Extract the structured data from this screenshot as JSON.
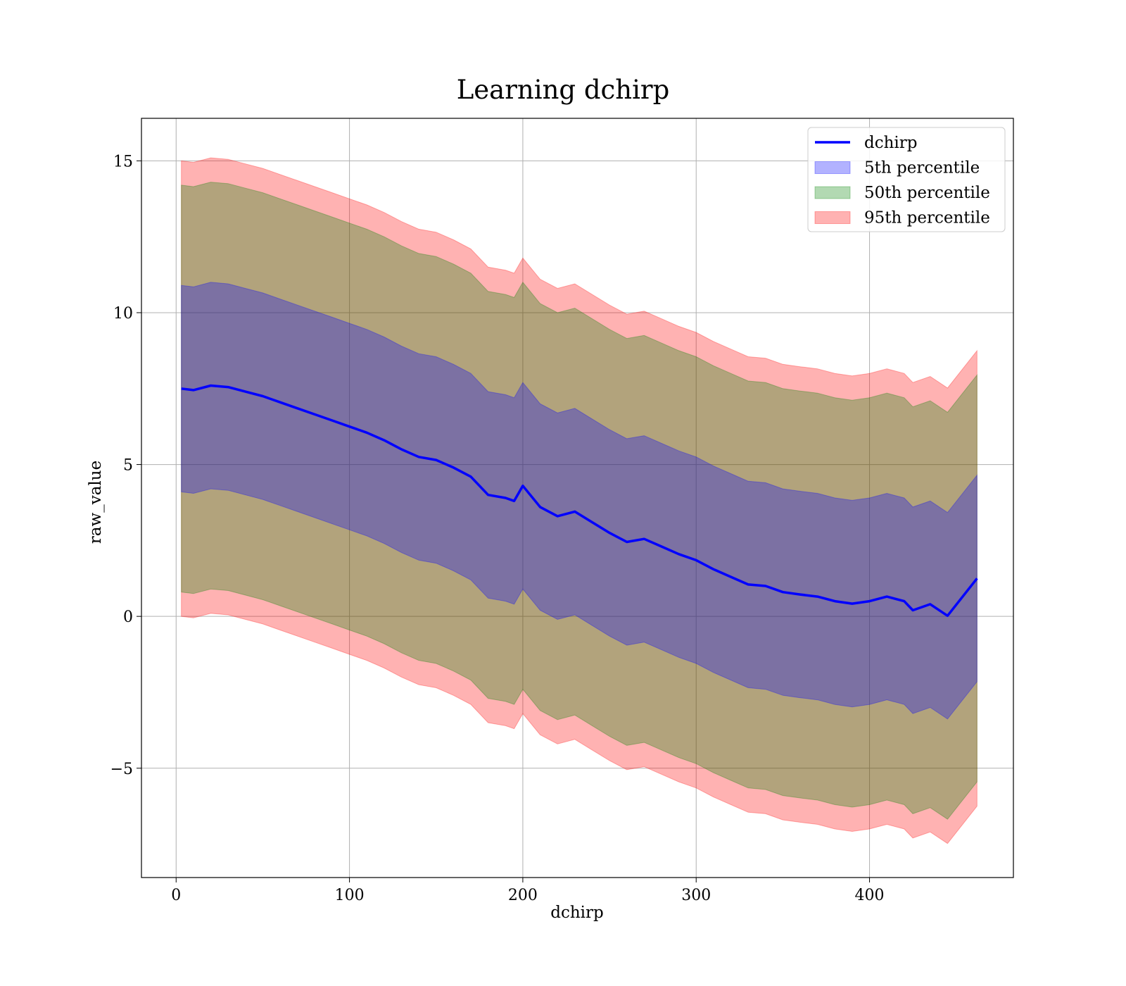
{
  "chart_data": {
    "type": "area",
    "title": "Learning dchirp",
    "xlabel": "dchirp",
    "ylabel": "raw_value",
    "xlim": [
      -20,
      483
    ],
    "ylim": [
      -8.6,
      16.4
    ],
    "x_ticks": [
      0,
      100,
      200,
      300,
      400
    ],
    "y_ticks": [
      -5,
      0,
      5,
      10,
      15
    ],
    "x_tick_labels": [
      "0",
      "100",
      "200",
      "300",
      "400"
    ],
    "y_tick_labels": [
      "−5",
      "0",
      "5",
      "10",
      "15"
    ],
    "grid": true,
    "legend_position": "top-right",
    "legend": [
      {
        "label": "dchirp",
        "kind": "line",
        "color": "#0000ff"
      },
      {
        "label": "5th percentile",
        "kind": "band",
        "color": "#0000ff"
      },
      {
        "label": "50th percentile",
        "kind": "band",
        "color": "#008000"
      },
      {
        "label": "95th percentile",
        "kind": "band",
        "color": "#ff0000"
      }
    ],
    "x": [
      3,
      10,
      20,
      30,
      40,
      50,
      60,
      70,
      80,
      90,
      100,
      110,
      120,
      130,
      140,
      150,
      160,
      170,
      180,
      190,
      195,
      200,
      210,
      220,
      230,
      240,
      250,
      260,
      270,
      280,
      290,
      300,
      310,
      320,
      330,
      340,
      350,
      360,
      370,
      380,
      390,
      400,
      410,
      420,
      425,
      435,
      445,
      462
    ],
    "mean": [
      7.5,
      7.45,
      7.6,
      7.55,
      7.4,
      7.25,
      7.05,
      6.85,
      6.65,
      6.45,
      6.25,
      6.05,
      5.8,
      5.5,
      5.25,
      5.15,
      4.9,
      4.6,
      4.0,
      3.9,
      3.8,
      4.3,
      3.6,
      3.3,
      3.45,
      3.1,
      2.75,
      2.45,
      2.55,
      2.3,
      2.05,
      1.85,
      1.55,
      1.3,
      1.05,
      1.0,
      0.8,
      0.72,
      0.65,
      0.5,
      0.42,
      0.5,
      0.65,
      0.5,
      0.2,
      0.4,
      0.02,
      1.25
    ],
    "series": [
      {
        "name": "95th percentile",
        "color": "#ff0000",
        "lower_offset": -7.5,
        "upper_offset": 7.5
      },
      {
        "name": "50th percentile",
        "color": "#008000",
        "lower_offset": -6.7,
        "upper_offset": 6.7
      },
      {
        "name": "5th percentile",
        "color": "#0000ff",
        "lower_offset": -3.4,
        "upper_offset": 3.4
      }
    ]
  }
}
